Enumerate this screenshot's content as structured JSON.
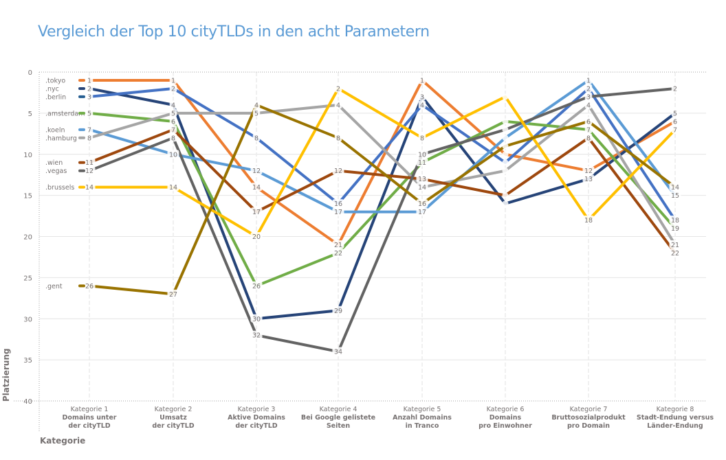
{
  "chart_data": {
    "type": "line",
    "title": "Vergleich der Top 10 cityTLDs in den acht Parametern",
    "xlabel": "Kategorie",
    "ylabel": "Platzierung",
    "ylim": [
      0,
      40
    ],
    "y_inverted": true,
    "yticks": [
      "0",
      "5",
      "10",
      "15",
      "20",
      "25",
      "30",
      "35",
      "40"
    ],
    "grid": true,
    "legend": "inline-left",
    "categories": [
      {
        "line1": "Kategorie 1",
        "line2": "Domains unter",
        "line3": "der cityTLD"
      },
      {
        "line1": "Kategorie 2",
        "line2": "Umsatz",
        "line3": "der cityTLD"
      },
      {
        "line1": "Kategorie 3",
        "line2": "Aktive Domains",
        "line3": "der cityTLD"
      },
      {
        "line1": "Kategorie 4",
        "line2": "Bei Google gelistete",
        "line3": "Seiten"
      },
      {
        "line1": "Kategorie 5",
        "line2": "Anzahl Domains",
        "line3": "in Tranco"
      },
      {
        "line1": "Kategorie 6",
        "line2": "Domains",
        "line3": "pro Einwohner"
      },
      {
        "line1": "Kategorie 7",
        "line2": "Bruttosozialprodukt",
        "line3": "pro Domain"
      },
      {
        "line1": "Kategorie 8",
        "line2": "Stadt-Endung versus",
        "line3": "Länder-Endung"
      }
    ],
    "series": [
      {
        "name": ".tokyo",
        "color": "#ED7D31",
        "values": [
          1,
          1,
          14,
          21,
          1,
          10,
          12,
          6
        ],
        "labels": [
          true,
          true,
          true,
          true,
          true,
          false,
          true,
          true
        ]
      },
      {
        "name": ".nyc",
        "color": "#264478",
        "values": [
          2,
          4,
          30,
          29,
          3,
          16,
          13,
          5
        ],
        "labels": [
          true,
          true,
          true,
          true,
          true,
          false,
          true,
          true
        ]
      },
      {
        "name": ".berlin",
        "color": "#4472C4",
        "legend_color": "#255E91",
        "values": [
          3,
          2,
          8,
          16,
          4,
          11,
          2,
          18
        ],
        "labels": [
          true,
          true,
          true,
          true,
          true,
          false,
          true,
          true
        ]
      },
      {
        "name": ".amsterdam",
        "color": "#70AD47",
        "values": [
          5,
          6,
          26,
          22,
          11,
          6,
          7,
          19
        ],
        "labels": [
          true,
          true,
          true,
          true,
          true,
          false,
          true,
          true
        ]
      },
      {
        "name": ".koeln",
        "color": "#5B9BD5",
        "values": [
          7,
          10,
          12,
          17,
          17,
          8,
          1,
          15
        ],
        "labels": [
          true,
          true,
          true,
          true,
          true,
          false,
          true,
          true
        ]
      },
      {
        "name": ".hamburg",
        "color": "#A5A5A5",
        "values": [
          8,
          5,
          5,
          4,
          14,
          12,
          4,
          21
        ],
        "labels": [
          true,
          true,
          true,
          true,
          true,
          false,
          true,
          true
        ]
      },
      {
        "name": ".wien",
        "color": "#9E480E",
        "values": [
          11,
          7,
          17,
          12,
          13,
          15,
          8,
          22
        ],
        "labels": [
          true,
          true,
          true,
          true,
          true,
          false,
          true,
          true
        ]
      },
      {
        "name": ".vegas",
        "color": "#636363",
        "values": [
          12,
          8,
          32,
          34,
          10,
          7,
          3,
          2
        ],
        "labels": [
          true,
          true,
          true,
          true,
          true,
          false,
          true,
          true
        ]
      },
      {
        "name": ".brussels",
        "color": "#FFC000",
        "values": [
          14,
          14,
          20,
          2,
          8,
          3,
          18,
          7
        ],
        "labels": [
          true,
          true,
          true,
          true,
          true,
          false,
          true,
          true
        ]
      },
      {
        "name": ".gent",
        "color": "#997300",
        "values": [
          26,
          27,
          4,
          8,
          16,
          9,
          6,
          14
        ],
        "labels": [
          true,
          true,
          true,
          true,
          true,
          false,
          true,
          true
        ]
      }
    ]
  }
}
